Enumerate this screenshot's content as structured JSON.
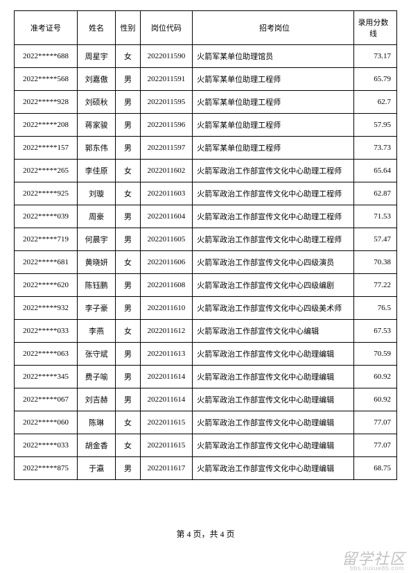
{
  "table": {
    "headers": {
      "id": "准考证号",
      "name": "姓名",
      "gender": "性别",
      "code": "岗位代码",
      "position": "招考岗位",
      "score": "录用分数线"
    },
    "rows": [
      {
        "id": "2022*****688",
        "name": "周星宇",
        "gender": "女",
        "code": "2022011590",
        "position": "火箭军某单位助理馆员",
        "score": "73.17"
      },
      {
        "id": "2022*****568",
        "name": "刘嘉傲",
        "gender": "男",
        "code": "2022011591",
        "position": "火箭军某单位助理工程师",
        "score": "65.79"
      },
      {
        "id": "2022*****928",
        "name": "刘硕秋",
        "gender": "男",
        "code": "2022011595",
        "position": "火箭军某单位助理工程师",
        "score": "62.7"
      },
      {
        "id": "2022*****208",
        "name": "蒋家骏",
        "gender": "男",
        "code": "2022011596",
        "position": "火箭军某单位助理工程师",
        "score": "57.95"
      },
      {
        "id": "2022*****157",
        "name": "郭东伟",
        "gender": "男",
        "code": "2022011597",
        "position": "火箭军某单位助理工程师",
        "score": "73.73"
      },
      {
        "id": "2022*****265",
        "name": "李佳原",
        "gender": "女",
        "code": "2022011602",
        "position": "火箭军政治工作部宣传文化中心助理工程师",
        "score": "65.64"
      },
      {
        "id": "2022*****925",
        "name": "刘璇",
        "gender": "女",
        "code": "2022011603",
        "position": "火箭军政治工作部宣传文化中心助理工程师",
        "score": "62.87"
      },
      {
        "id": "2022*****039",
        "name": "周豪",
        "gender": "男",
        "code": "2022011604",
        "position": "火箭军政治工作部宣传文化中心助理工程师",
        "score": "71.53"
      },
      {
        "id": "2022*****719",
        "name": "何晨宇",
        "gender": "男",
        "code": "2022011605",
        "position": "火箭军政治工作部宣传文化中心助理工程师",
        "score": "57.47"
      },
      {
        "id": "2022*****681",
        "name": "黄晓妍",
        "gender": "女",
        "code": "2022011606",
        "position": "火箭军政治工作部宣传文化中心四级演员",
        "score": "70.38"
      },
      {
        "id": "2022*****620",
        "name": "陈钰鹏",
        "gender": "男",
        "code": "2022011608",
        "position": "火箭军政治工作部宣传文化中心四级编剧",
        "score": "77.22"
      },
      {
        "id": "2022*****932",
        "name": "李子豪",
        "gender": "男",
        "code": "2022011610",
        "position": "火箭军政治工作部宣传文化中心四级美术师",
        "score": "76.5"
      },
      {
        "id": "2022*****033",
        "name": "李燕",
        "gender": "女",
        "code": "2022011612",
        "position": "火箭军政治工作部宣传文化中心编辑",
        "score": "67.53"
      },
      {
        "id": "2022*****063",
        "name": "张守斌",
        "gender": "男",
        "code": "2022011613",
        "position": "火箭军政治工作部宣传文化中心助理编辑",
        "score": "70.59"
      },
      {
        "id": "2022*****345",
        "name": "费子喻",
        "gender": "男",
        "code": "2022011614",
        "position": "火箭军政治工作部宣传文化中心助理编辑",
        "score": "60.92"
      },
      {
        "id": "2022*****067",
        "name": "刘吉赫",
        "gender": "男",
        "code": "2022011614",
        "position": "火箭军政治工作部宣传文化中心助理编辑",
        "score": "60.92"
      },
      {
        "id": "2022*****060",
        "name": "陈琳",
        "gender": "女",
        "code": "2022011615",
        "position": "火箭军政治工作部宣传文化中心助理编辑",
        "score": "77.07"
      },
      {
        "id": "2022*****033",
        "name": "胡金香",
        "gender": "女",
        "code": "2022011615",
        "position": "火箭军政治工作部宣传文化中心助理编辑",
        "score": "77.07"
      },
      {
        "id": "2022*****875",
        "name": "于瀛",
        "gender": "男",
        "code": "2022011617",
        "position": "火箭军政治工作部宣传文化中心助理编辑",
        "score": "68.75"
      }
    ]
  },
  "footer": {
    "page_text": "第 4 页，共 4 页"
  },
  "watermark": {
    "main": "留学社区",
    "sub": "bbs.liuxue86.com"
  }
}
